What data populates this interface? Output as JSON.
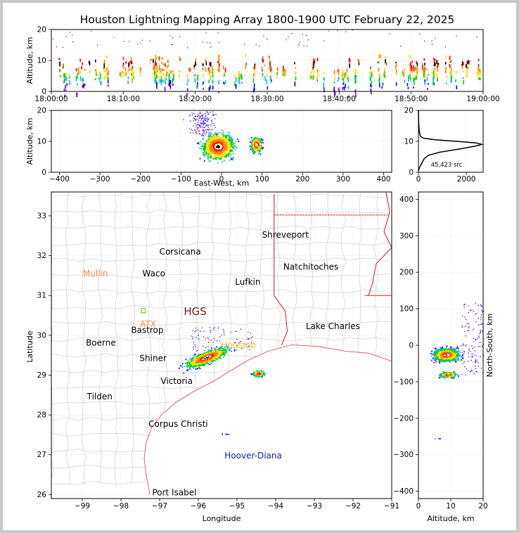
{
  "title": "Houston Lightning Mapping Array 1800-1900 UTC February 22, 2025",
  "chart_data": [
    {
      "id": "altitude-time",
      "type": "scatter",
      "ylabel": "Altitude, km",
      "ylim": [
        0,
        20
      ],
      "yticks": [
        "0",
        "10",
        "20"
      ],
      "xticks": [
        "18:00:00",
        "18:10:00",
        "18:20:00",
        "18:30:00",
        "18:40:00",
        "18:50:00",
        "19:00:00"
      ],
      "grid": true,
      "description": "Source altitudes (mostly 5–13 km) vs time, 18:00–19:00 UTC"
    },
    {
      "id": "altitude-eastwest",
      "type": "scatter",
      "xlabel": "East-West, km",
      "ylabel": "Altitude, km",
      "xlim": [
        -420,
        420
      ],
      "ylim": [
        0,
        20
      ],
      "xticks": [
        "−400",
        "−300",
        "−200",
        "−100",
        "0",
        "100",
        "200",
        "300",
        "400"
      ],
      "yticks": [
        "0",
        "10",
        "20"
      ],
      "clusters": [
        {
          "x_center": -10,
          "alt_center": 8.5,
          "x_span": [
            -130,
            20
          ],
          "alt_span": [
            1,
            20
          ]
        },
        {
          "x_center": 85,
          "alt_center": 9,
          "x_span": [
            60,
            115
          ],
          "alt_span": [
            5,
            13
          ]
        }
      ]
    },
    {
      "id": "altitude-histogram",
      "type": "line",
      "xlim": [
        0,
        2700
      ],
      "ylim": [
        0,
        20
      ],
      "xticks": [
        "0",
        "2000"
      ],
      "yticks": [
        "0",
        "10",
        "20"
      ],
      "annotation": "45,423 src",
      "profile": [
        {
          "alt": 0.5,
          "count": 5
        },
        {
          "alt": 1.5,
          "count": 40
        },
        {
          "alt": 2.5,
          "count": 110
        },
        {
          "alt": 3.5,
          "count": 180
        },
        {
          "alt": 4.5,
          "count": 250
        },
        {
          "alt": 5.5,
          "count": 420
        },
        {
          "alt": 6.5,
          "count": 900
        },
        {
          "alt": 7.5,
          "count": 1700
        },
        {
          "alt": 8.5,
          "count": 2400
        },
        {
          "alt": 9.0,
          "count": 2650
        },
        {
          "alt": 9.5,
          "count": 2400
        },
        {
          "alt": 10.0,
          "count": 1600
        },
        {
          "alt": 10.5,
          "count": 700
        },
        {
          "alt": 11.0,
          "count": 230
        },
        {
          "alt": 11.5,
          "count": 110
        },
        {
          "alt": 12.0,
          "count": 70
        },
        {
          "alt": 13.0,
          "count": 40
        },
        {
          "alt": 14.0,
          "count": 25
        },
        {
          "alt": 16.0,
          "count": 12
        },
        {
          "alt": 18.0,
          "count": 6
        },
        {
          "alt": 20.0,
          "count": 3
        }
      ]
    },
    {
      "id": "plan-view",
      "type": "scatter",
      "xlabel": "Longitude",
      "ylabel": "Latitude",
      "xlim": [
        -99.8,
        -91.0
      ],
      "ylim": [
        25.9,
        33.6
      ],
      "xticks": [
        "−99",
        "−98",
        "−97",
        "−96",
        "−95",
        "−94",
        "−93",
        "−92",
        "−91"
      ],
      "yticks": [
        "26",
        "27",
        "28",
        "29",
        "30",
        "31",
        "32",
        "33"
      ],
      "cities": [
        {
          "name": "Corsicana",
          "lon": -96.47,
          "lat": 32.1,
          "color": "#000000"
        },
        {
          "name": "Shreveport",
          "lon": -93.75,
          "lat": 32.52,
          "color": "#000000"
        },
        {
          "name": "Mullin",
          "lon": -98.66,
          "lat": 31.55,
          "color": "#f08a4b"
        },
        {
          "name": "Waco",
          "lon": -97.15,
          "lat": 31.55,
          "color": "#000000"
        },
        {
          "name": "Natchitoches",
          "lon": -93.09,
          "lat": 31.72,
          "color": "#000000"
        },
        {
          "name": "Lufkin",
          "lon": -94.72,
          "lat": 31.34,
          "color": "#000000"
        },
        {
          "name": "HGS",
          "lon": -96.08,
          "lat": 30.58,
          "color": "#7a1e1e"
        },
        {
          "name": "ATX",
          "lon": -97.3,
          "lat": 30.28,
          "color": "#f08a4b"
        },
        {
          "name": "Bastrop",
          "lon": -97.32,
          "lat": 30.13,
          "color": "#000000"
        },
        {
          "name": "Lake Charles",
          "lon": -92.52,
          "lat": 30.23,
          "color": "#000000"
        },
        {
          "name": "Houston",
          "lon": -94.96,
          "lat": 29.75,
          "color": "#f5c518"
        },
        {
          "name": "Boerne",
          "lon": -98.52,
          "lat": 29.81,
          "color": "#000000"
        },
        {
          "name": "Shiner",
          "lon": -97.17,
          "lat": 29.42,
          "color": "#000000"
        },
        {
          "name": "Victoria",
          "lon": -96.56,
          "lat": 28.85,
          "color": "#000000"
        },
        {
          "name": "Tilden",
          "lon": -98.55,
          "lat": 28.46,
          "color": "#000000"
        },
        {
          "name": "Corpus Christi",
          "lon": -96.52,
          "lat": 27.77,
          "color": "#000000"
        },
        {
          "name": "Hoover-Diana",
          "lon": -94.58,
          "lat": 26.98,
          "color": "#0a1ad4"
        },
        {
          "name": "Port Isabel",
          "lon": -96.62,
          "lat": 26.05,
          "color": "#000000"
        }
      ]
    },
    {
      "id": "northsouth-altitude",
      "type": "scatter",
      "xlabel": "Altitude, km",
      "ylabel": "North-South, km",
      "xlim": [
        0,
        20
      ],
      "ylim": [
        -420,
        420
      ],
      "xticks": [
        "0",
        "10",
        "20"
      ],
      "yticks": [
        "−400",
        "−300",
        "−200",
        "−100",
        "0",
        "100",
        "200",
        "300",
        "400"
      ]
    }
  ]
}
